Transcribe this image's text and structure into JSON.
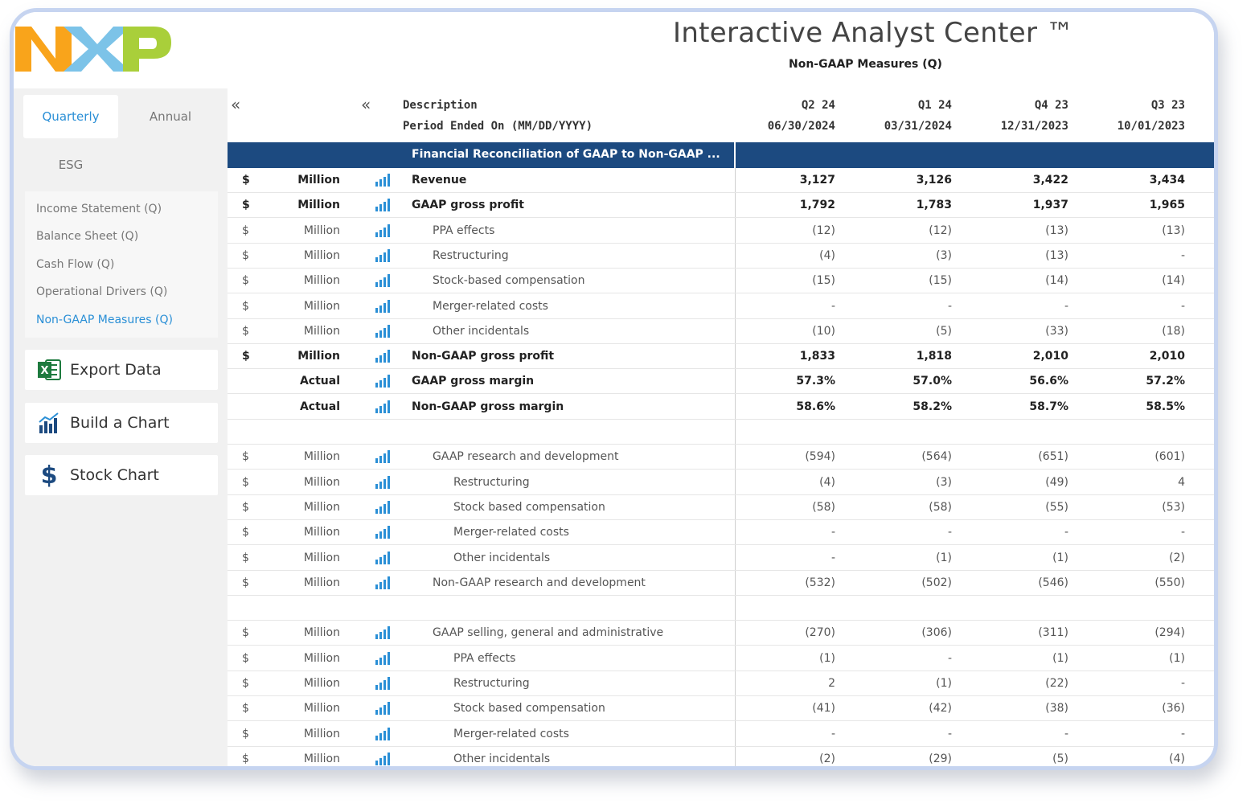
{
  "header": {
    "title": "Interactive Analyst Center ™",
    "subtitle": "Non-GAAP Measures (Q)"
  },
  "colors": {
    "accent": "#2a8fd6",
    "section_bar": "#1c4a80",
    "logo_orange": "#f9a41b",
    "logo_blue": "#7cc3e8",
    "logo_green": "#a9cf3a"
  },
  "sidebar": {
    "tabs": [
      {
        "label": "Quarterly",
        "active": true
      },
      {
        "label": "Annual"
      },
      {
        "label": "ESG"
      }
    ],
    "nav": [
      {
        "label": "Income Statement (Q)"
      },
      {
        "label": "Balance Sheet (Q)"
      },
      {
        "label": "Cash Flow (Q)"
      },
      {
        "label": "Operational Drivers (Q)"
      },
      {
        "label": "Non-GAAP Measures (Q)",
        "active": true
      }
    ],
    "actions": [
      {
        "label": "Export Data",
        "icon": "excel-icon"
      },
      {
        "label": "Build a Chart",
        "icon": "bar-chart-icon"
      },
      {
        "label": "Stock Chart",
        "icon": "dollar-icon"
      }
    ]
  },
  "table": {
    "collapse_glyph": "«",
    "desc_header": "Description",
    "period_header": "Period Ended On (MM/DD/YYYY)",
    "columns": [
      {
        "quarter": "Q2 24",
        "date": "06/30/2024"
      },
      {
        "quarter": "Q1 24",
        "date": "03/31/2024"
      },
      {
        "quarter": "Q4 23",
        "date": "12/31/2023"
      },
      {
        "quarter": "Q3 23",
        "date": "10/01/2023"
      }
    ],
    "section_title": "Financial Reconciliation of GAAP to Non-GAAP ...",
    "rows": [
      {
        "cur": "$",
        "unit": "Million",
        "desc": "Revenue",
        "indent": 0,
        "bold": true,
        "values": [
          "3,127",
          "3,126",
          "3,422",
          "3,434"
        ]
      },
      {
        "cur": "$",
        "unit": "Million",
        "desc": "GAAP gross profit",
        "indent": 0,
        "bold": true,
        "values": [
          "1,792",
          "1,783",
          "1,937",
          "1,965"
        ]
      },
      {
        "cur": "$",
        "unit": "Million",
        "desc": "PPA effects",
        "indent": 1,
        "values": [
          "(12)",
          "(12)",
          "(13)",
          "(13)"
        ]
      },
      {
        "cur": "$",
        "unit": "Million",
        "desc": "Restructuring",
        "indent": 1,
        "values": [
          "(4)",
          "(3)",
          "(13)",
          "-"
        ]
      },
      {
        "cur": "$",
        "unit": "Million",
        "desc": "Stock-based compensation",
        "indent": 1,
        "values": [
          "(15)",
          "(15)",
          "(14)",
          "(14)"
        ]
      },
      {
        "cur": "$",
        "unit": "Million",
        "desc": "Merger-related costs",
        "indent": 1,
        "values": [
          "-",
          "-",
          "-",
          "-"
        ]
      },
      {
        "cur": "$",
        "unit": "Million",
        "desc": "Other incidentals",
        "indent": 1,
        "values": [
          "(10)",
          "(5)",
          "(33)",
          "(18)"
        ]
      },
      {
        "cur": "$",
        "unit": "Million",
        "desc": "Non-GAAP gross profit",
        "indent": 0,
        "bold": true,
        "values": [
          "1,833",
          "1,818",
          "2,010",
          "2,010"
        ]
      },
      {
        "cur": "",
        "unit": "Actual",
        "desc": "GAAP gross margin",
        "indent": 0,
        "bold": true,
        "values": [
          "57.3%",
          "57.0%",
          "56.6%",
          "57.2%"
        ]
      },
      {
        "cur": "",
        "unit": "Actual",
        "desc": "Non-GAAP gross margin",
        "indent": 0,
        "bold": true,
        "values": [
          "58.6%",
          "58.2%",
          "58.7%",
          "58.5%"
        ]
      },
      {
        "blank": true
      },
      {
        "cur": "$",
        "unit": "Million",
        "desc": "GAAP research and development",
        "indent": 1,
        "values": [
          "(594)",
          "(564)",
          "(651)",
          "(601)"
        ]
      },
      {
        "cur": "$",
        "unit": "Million",
        "desc": "Restructuring",
        "indent": 2,
        "values": [
          "(4)",
          "(3)",
          "(49)",
          "4"
        ]
      },
      {
        "cur": "$",
        "unit": "Million",
        "desc": "Stock based compensation",
        "indent": 2,
        "values": [
          "(58)",
          "(58)",
          "(55)",
          "(53)"
        ]
      },
      {
        "cur": "$",
        "unit": "Million",
        "desc": "Merger-related costs",
        "indent": 2,
        "values": [
          "-",
          "-",
          "-",
          "-"
        ]
      },
      {
        "cur": "$",
        "unit": "Million",
        "desc": "Other incidentals",
        "indent": 2,
        "values": [
          "-",
          "(1)",
          "(1)",
          "(2)"
        ]
      },
      {
        "cur": "$",
        "unit": "Million",
        "desc": "Non-GAAP research and development",
        "indent": 1,
        "values": [
          "(532)",
          "(502)",
          "(546)",
          "(550)"
        ]
      },
      {
        "blank": true
      },
      {
        "cur": "$",
        "unit": "Million",
        "desc": "GAAP selling, general and administrative",
        "indent": 1,
        "values": [
          "(270)",
          "(306)",
          "(311)",
          "(294)"
        ]
      },
      {
        "cur": "$",
        "unit": "Million",
        "desc": "PPA effects",
        "indent": 2,
        "values": [
          "(1)",
          "-",
          "(1)",
          "(1)"
        ]
      },
      {
        "cur": "$",
        "unit": "Million",
        "desc": "Restructuring",
        "indent": 2,
        "values": [
          "2",
          "(1)",
          "(22)",
          "-"
        ]
      },
      {
        "cur": "$",
        "unit": "Million",
        "desc": "Stock based compensation",
        "indent": 2,
        "values": [
          "(41)",
          "(42)",
          "(38)",
          "(36)"
        ]
      },
      {
        "cur": "$",
        "unit": "Million",
        "desc": "Merger-related costs",
        "indent": 2,
        "values": [
          "-",
          "-",
          "-",
          "-"
        ]
      },
      {
        "cur": "$",
        "unit": "Million",
        "desc": "Other incidentals",
        "indent": 2,
        "values": [
          "(2)",
          "(29)",
          "(5)",
          "(4)"
        ]
      }
    ]
  }
}
